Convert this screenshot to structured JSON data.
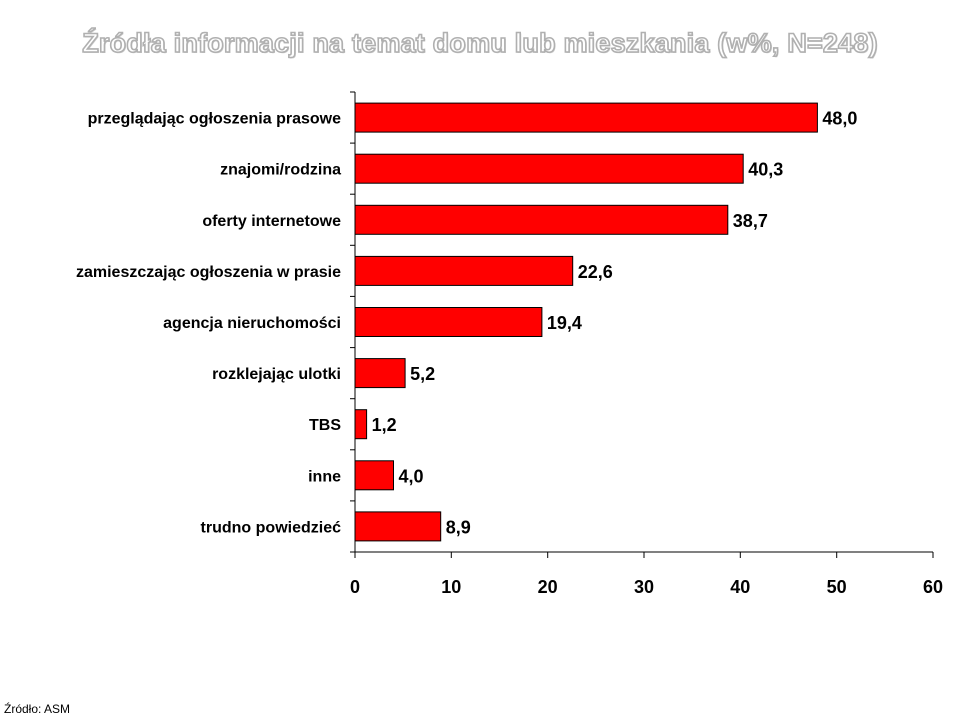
{
  "chart_data": {
    "type": "bar",
    "orientation": "horizontal",
    "title": "Źródła informacji na temat domu lub mieszkania (w%, N=248)",
    "categories": [
      "przeglądając ogłoszenia prasowe",
      "znajomi/rodzina",
      "oferty internetowe",
      "zamieszczając ogłoszenia w prasie",
      "agencja nieruchomości",
      "rozklejając ulotki",
      "TBS",
      "inne",
      "trudno powiedzieć"
    ],
    "values": [
      48.0,
      40.3,
      38.7,
      22.6,
      19.4,
      5.2,
      1.2,
      4.0,
      8.9
    ],
    "value_labels": [
      "48,0",
      "40,3",
      "38,7",
      "22,6",
      "19,4",
      "5,2",
      "1,2",
      "4,0",
      "8,9"
    ],
    "xlim": [
      0,
      60
    ],
    "x_ticks": [
      0,
      10,
      20,
      30,
      40,
      50,
      60
    ],
    "xlabel": "",
    "ylabel": "",
    "grid": false,
    "bar_color": "#ff0000",
    "bar_edge_color": "#000000"
  },
  "source_note": "Źródło: ASM"
}
